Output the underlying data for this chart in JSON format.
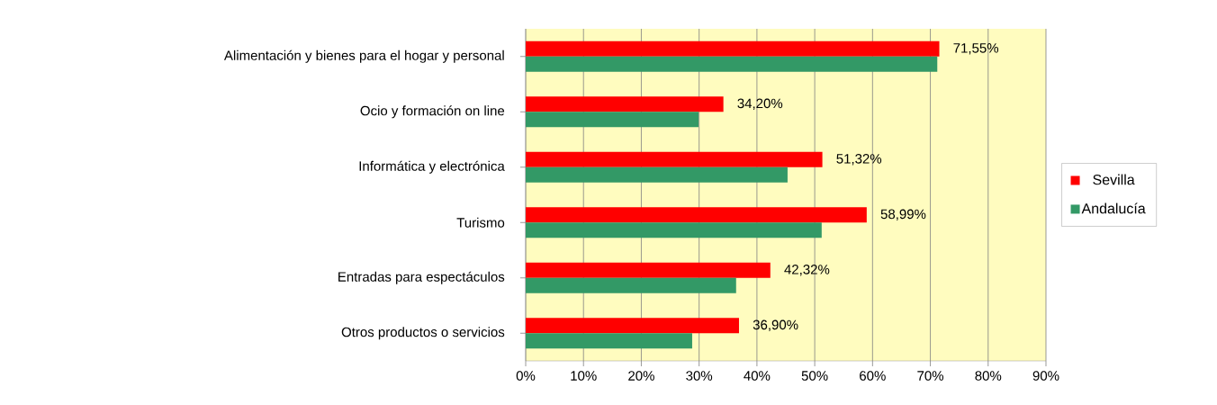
{
  "chart_data": {
    "type": "bar",
    "orientation": "horizontal",
    "categories": [
      "Alimentación y bienes para el hogar y personal",
      "Ocio y formación on line",
      "Informática y electrónica",
      "Turismo",
      "Entradas para espectáculos",
      "Otros productos o servicios"
    ],
    "series": [
      {
        "name": "Sevilla",
        "color": "#ff0000",
        "values": [
          71.55,
          34.2,
          51.32,
          58.99,
          42.32,
          36.9
        ],
        "value_labels": [
          "71,55%",
          "34,20%",
          "51,32%",
          "58,99%",
          "42,32%",
          "36,90%"
        ]
      },
      {
        "name": "Andalucía",
        "color": "#339966",
        "values": [
          71.2,
          29.9,
          45.3,
          51.2,
          36.4,
          28.8
        ]
      }
    ],
    "xlim": [
      0,
      90
    ],
    "xticks": [
      {
        "value": 0,
        "label": "0%"
      },
      {
        "value": 10,
        "label": "10%"
      },
      {
        "value": 20,
        "label": "20%"
      },
      {
        "value": 30,
        "label": "30%"
      },
      {
        "value": 40,
        "label": "40%"
      },
      {
        "value": 50,
        "label": "50%"
      },
      {
        "value": 60,
        "label": "60%"
      },
      {
        "value": 70,
        "label": "70%"
      },
      {
        "value": 80,
        "label": "80%"
      },
      {
        "value": 90,
        "label": "90%"
      }
    ],
    "grid": "x",
    "legend": "right"
  }
}
